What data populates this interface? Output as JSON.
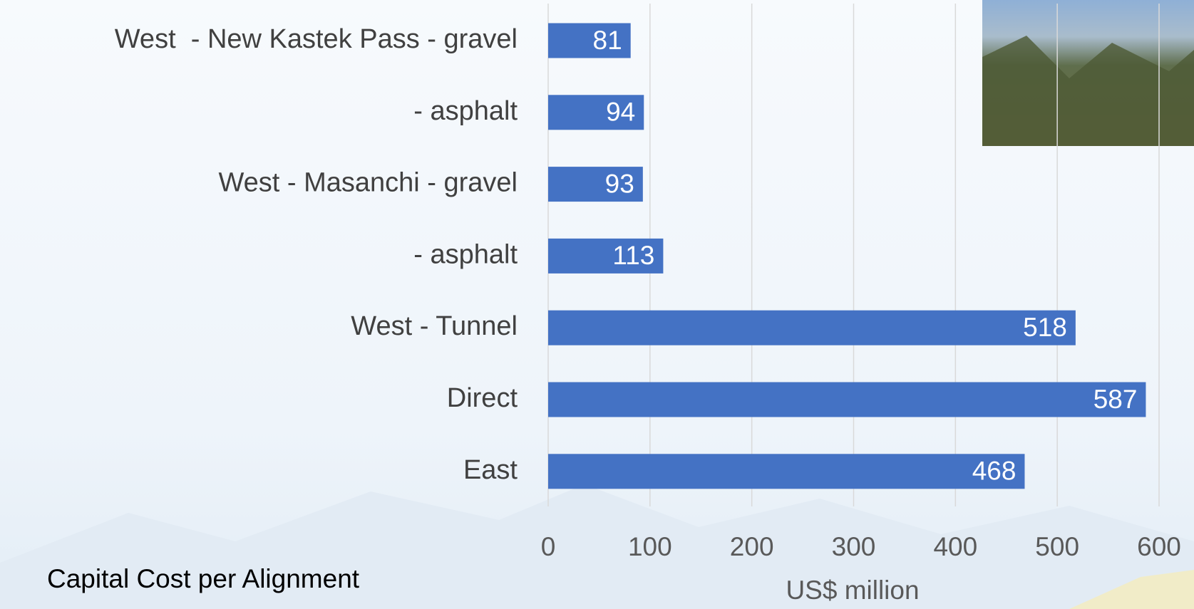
{
  "chart_data": {
    "type": "bar",
    "title": "Capital Cost per Alignment",
    "x_label": "US$ million",
    "categories": [
      "West  - New Kastek Pass - gravel",
      "- asphalt",
      "West - Masanchi - gravel",
      "- asphalt",
      "West - Tunnel",
      "Direct",
      "East"
    ],
    "values": [
      81,
      94,
      93,
      113,
      518,
      587,
      468
    ],
    "color": "#4472c4",
    "xlim": [
      0,
      600
    ],
    "xticks": [
      0,
      100,
      200,
      300,
      400,
      500,
      600
    ],
    "grid": true
  }
}
